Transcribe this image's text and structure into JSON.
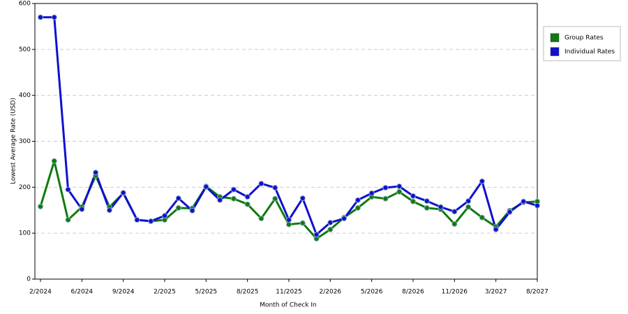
{
  "chart_data": {
    "type": "line",
    "x_label": "Month of Check In",
    "y_label": "Lowest Average Rate (USD)",
    "categories": [
      "2/2024",
      null,
      null,
      "6/2024",
      null,
      null,
      "9/2024",
      null,
      null,
      "2/2025",
      null,
      null,
      "5/2025",
      null,
      null,
      "8/2025",
      null,
      null,
      "11/2025",
      null,
      null,
      "2/2026",
      null,
      null,
      "5/2026",
      null,
      null,
      "8/2026",
      null,
      null,
      "11/2026",
      null,
      null,
      "3/2027",
      null,
      null,
      "8/2027"
    ],
    "series": [
      {
        "name": "Group Rates",
        "color": "#0f7a0f",
        "values": [
          158,
          257,
          129,
          157,
          225,
          157,
          187,
          129,
          126,
          129,
          155,
          154,
          202,
          179,
          175,
          163,
          132,
          175,
          119,
          122,
          88,
          108,
          134,
          155,
          179,
          175,
          190,
          169,
          155,
          152,
          120,
          157,
          134,
          114,
          149,
          167,
          169
        ]
      },
      {
        "name": "Individual Rates",
        "color": "#1010d0",
        "values": [
          570,
          570,
          195,
          152,
          232,
          150,
          188,
          129,
          126,
          138,
          176,
          149,
          201,
          172,
          195,
          179,
          208,
          199,
          129,
          176,
          97,
          123,
          132,
          172,
          187,
          199,
          202,
          181,
          170,
          157,
          147,
          170,
          213,
          108,
          146,
          169,
          160
        ]
      }
    ],
    "ylim": [
      0,
      600
    ],
    "yticks": [
      0,
      100,
      200,
      300,
      400,
      500,
      600
    ],
    "grid": true,
    "legend": "right"
  }
}
